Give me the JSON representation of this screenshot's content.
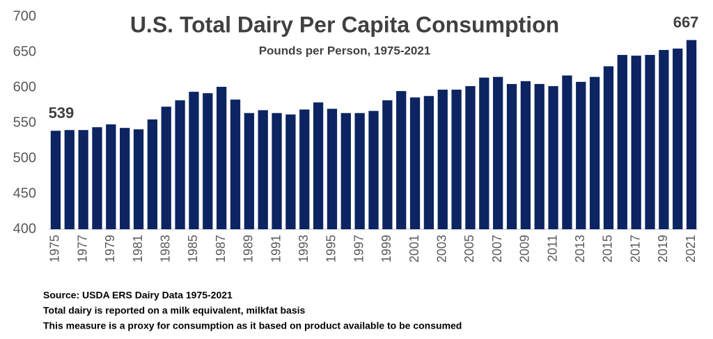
{
  "chart_data": {
    "type": "bar",
    "title": "U.S. Total Dairy Per Capita Consumption",
    "subtitle": "Pounds per Person, 1975-2021",
    "categories": [
      "1975",
      null,
      "1977",
      null,
      "1979",
      null,
      "1981",
      null,
      "1983",
      null,
      "1985",
      null,
      "1987",
      null,
      "1989",
      null,
      "1991",
      null,
      "1993",
      null,
      "1995",
      null,
      "1997",
      null,
      "1999",
      null,
      "2001",
      null,
      "2003",
      null,
      "2005",
      null,
      "2007",
      null,
      "2009",
      null,
      "2011",
      null,
      "2013",
      null,
      "2015",
      null,
      "2017",
      null,
      "2019",
      null,
      "2021"
    ],
    "values": [
      539,
      540,
      540,
      544,
      548,
      543,
      541,
      555,
      573,
      582,
      594,
      592,
      601,
      583,
      564,
      568,
      564,
      562,
      569,
      579,
      570,
      564,
      564,
      567,
      582,
      595,
      586,
      588,
      597,
      597,
      602,
      614,
      615,
      605,
      609,
      605,
      602,
      617,
      608,
      615,
      630,
      646,
      645,
      646,
      653,
      655,
      667
    ],
    "value_labels": [
      "539",
      null,
      null,
      null,
      null,
      null,
      null,
      null,
      null,
      null,
      null,
      null,
      null,
      null,
      null,
      null,
      null,
      null,
      null,
      null,
      null,
      null,
      null,
      null,
      null,
      null,
      null,
      null,
      null,
      null,
      null,
      null,
      null,
      null,
      null,
      null,
      null,
      null,
      null,
      null,
      null,
      null,
      null,
      null,
      null,
      null,
      "667"
    ],
    "color": "#0c2461",
    "ylim": [
      400,
      700
    ],
    "yticks": [
      400,
      450,
      500,
      550,
      600,
      650,
      700
    ],
    "grid": false,
    "notes": [
      "Source: USDA ERS Dairy Data 1975-2021",
      "Total dairy is reported on a milk equivalent, milkfat basis",
      "This measure is a proxy for consumption as it based on product available to be consumed"
    ]
  }
}
